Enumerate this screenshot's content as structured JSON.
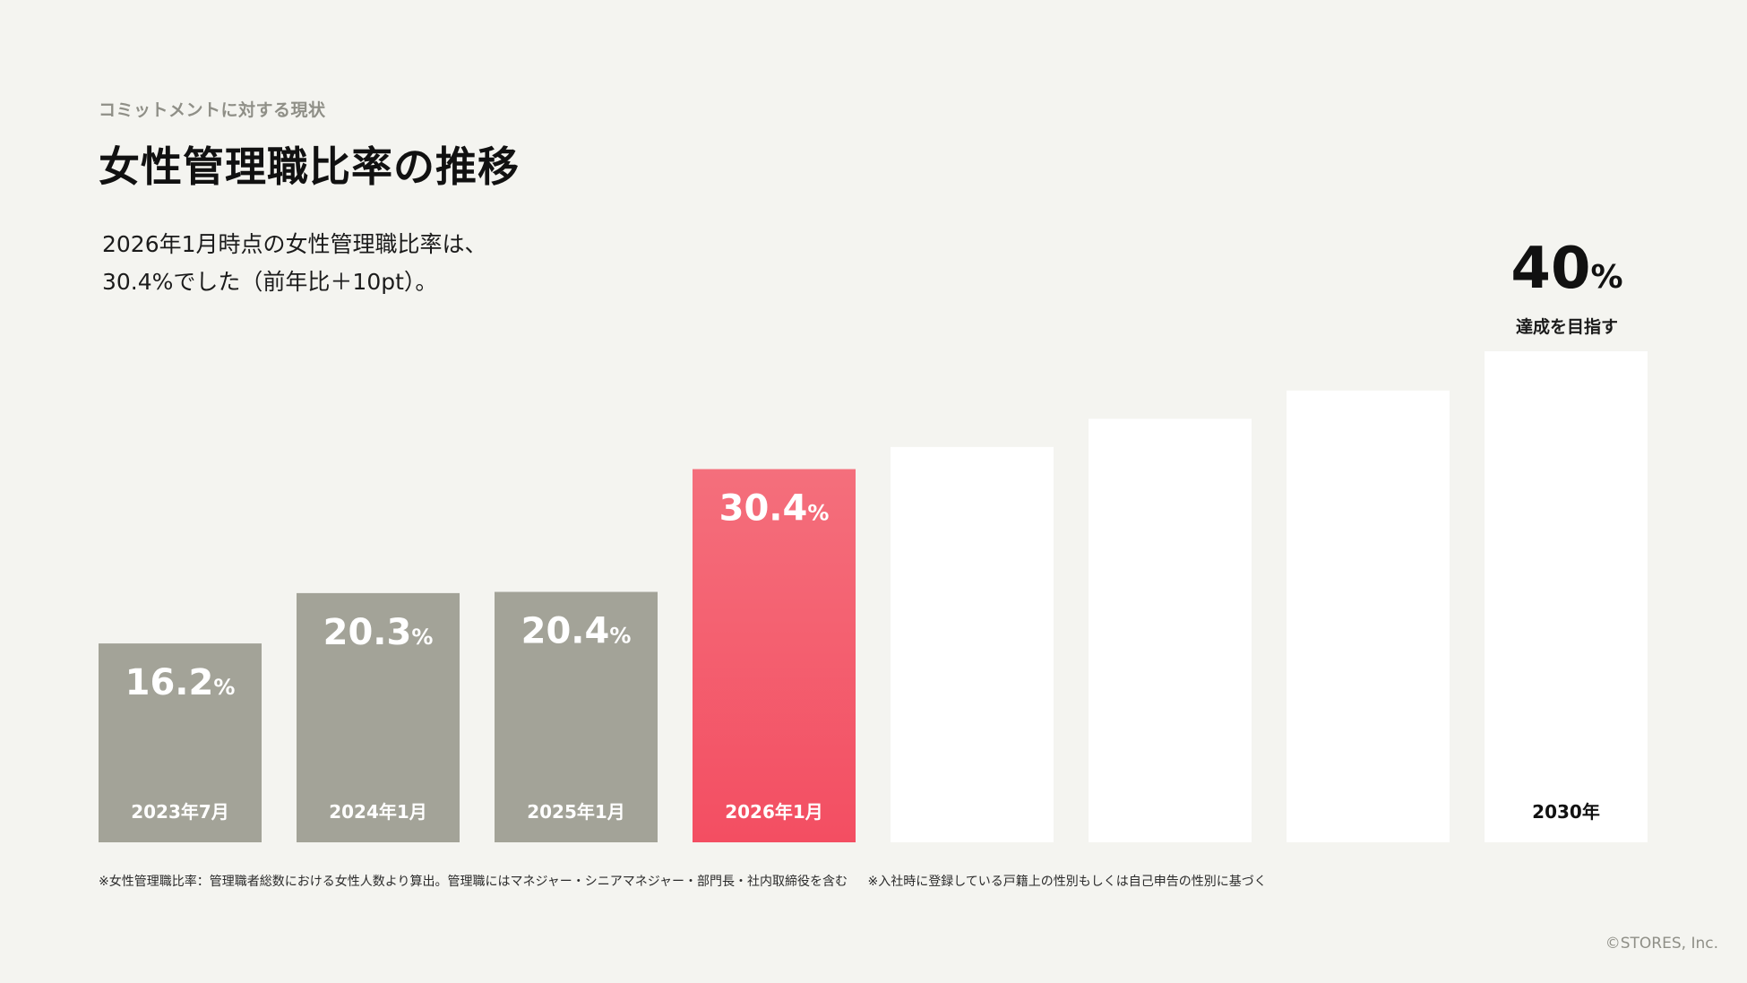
{
  "header": {
    "eyebrow": "コミットメントに対する現状",
    "title": "女性管理職比率の推移"
  },
  "summary": {
    "line1": "2026年1月時点の女性管理職比率は、",
    "line2": "30.4%でした（前年比＋10pt）。"
  },
  "goal": {
    "value": "40",
    "unit": "%",
    "caption": "達成を目指す"
  },
  "chart_data": {
    "type": "bar",
    "categories": [
      "2023年7月",
      "2024年1月",
      "2025年1月",
      "2026年1月",
      "",
      "",
      "",
      "2030年"
    ],
    "values": [
      16.2,
      20.3,
      20.4,
      30.4,
      32.2,
      34.5,
      36.8,
      40
    ],
    "value_labels": [
      "16.2",
      "20.3",
      "20.4",
      "30.4",
      "",
      "",
      "",
      ""
    ],
    "unit": "%",
    "ylim": [
      0,
      40
    ],
    "bar_styles": [
      "actual",
      "actual",
      "actual",
      "current",
      "projection",
      "projection",
      "projection",
      "projection"
    ],
    "colors": {
      "actual": "#a3a398",
      "current_top": "#f46f7c",
      "current_bottom": "#f34e62",
      "projection": "#ffffff",
      "label_on_dark": "#ffffff",
      "label_on_light": "#111111"
    },
    "grid": false,
    "legend": "none"
  },
  "footnotes": {
    "note1": "※女性管理職比率：管理職者総数における女性人数より算出。管理職にはマネジャー・シニアマネジャー・部門長・社内取締役を含む",
    "note2": "※入社時に登録している戸籍上の性別もしくは自己申告の性別に基づく"
  },
  "copyright": "©STORES, Inc."
}
